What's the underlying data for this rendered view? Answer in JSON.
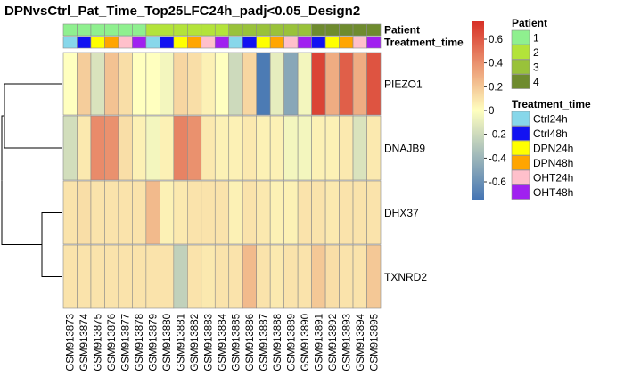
{
  "chart_data": {
    "type": "heatmap",
    "title": "DPNvsCtrl_Pat_Time_Top25LFC24h_padj<0.05_Design2",
    "rows": [
      "PIEZO1",
      "DNAJB9",
      "DHX37",
      "TXNRD2"
    ],
    "columns": [
      "GSM913873",
      "GSM913874",
      "GSM913875",
      "GSM913876",
      "GSM913877",
      "GSM913878",
      "GSM913879",
      "GSM913880",
      "GSM913881",
      "GSM913882",
      "GSM913883",
      "GSM913884",
      "GSM913885",
      "GSM913886",
      "GSM913887",
      "GSM913888",
      "GSM913889",
      "GSM913890",
      "GSM913891",
      "GSM913892",
      "GSM913893",
      "GSM913894",
      "GSM913895"
    ],
    "values": [
      [
        0.0,
        0.18,
        -0.15,
        0.22,
        0.12,
        0.0,
        0.0,
        -0.05,
        0.15,
        0.12,
        0.05,
        0.0,
        -0.2,
        0.15,
        -0.72,
        -0.1,
        -0.48,
        -0.05,
        0.68,
        0.3,
        0.58,
        0.3,
        0.62
      ],
      [
        -0.18,
        0.08,
        0.42,
        0.4,
        0.12,
        0.05,
        -0.05,
        0.05,
        0.45,
        0.4,
        0.08,
        0.05,
        0.05,
        0.08,
        0.05,
        0.05,
        -0.05,
        -0.05,
        0.05,
        0.05,
        0.08,
        -0.15,
        0.08
      ],
      [
        0.1,
        0.12,
        0.1,
        0.1,
        0.1,
        0.1,
        0.25,
        0.05,
        0.08,
        0.1,
        0.1,
        0.1,
        0.05,
        0.1,
        0.08,
        0.05,
        0.05,
        0.1,
        0.1,
        0.08,
        0.1,
        0.1,
        0.1
      ],
      [
        0.1,
        0.1,
        0.1,
        0.1,
        0.1,
        0.1,
        0.1,
        0.1,
        -0.25,
        0.1,
        0.08,
        0.1,
        0.1,
        0.25,
        0.1,
        0.08,
        0.1,
        0.1,
        0.2,
        0.12,
        0.1,
        0.1,
        0.2
      ]
    ],
    "color_scale": {
      "min": -0.75,
      "max": 0.75,
      "low": "#4575b4",
      "mid": "#ffffbf",
      "high": "#d73027"
    },
    "legend_ticks": [
      0.6,
      0.4,
      0.2,
      0,
      -0.2,
      -0.4,
      -0.6
    ],
    "legend_tick_labels": [
      "0.6",
      "0.4",
      "0.2",
      "0",
      "-0.2",
      "-0.4",
      "-0.6"
    ],
    "annotations": [
      {
        "label": "Patient",
        "levels": [
          "1",
          "1",
          "1",
          "1",
          "1",
          "1",
          "2",
          "2",
          "2",
          "2",
          "2",
          "2",
          "3",
          "3",
          "3",
          "3",
          "3",
          "3",
          "4",
          "4",
          "4",
          "4",
          "4"
        ]
      },
      {
        "label": "Treatment_time",
        "levels": [
          "Ctrl24h",
          "Ctrl48h",
          "DPN24h",
          "DPN48h",
          "OHT24h",
          "OHT48h",
          "Ctrl24h",
          "Ctrl48h",
          "DPN24h",
          "DPN48h",
          "OHT24h",
          "OHT48h",
          "Ctrl24h",
          "Ctrl48h",
          "DPN24h",
          "DPN48h",
          "OHT24h",
          "OHT48h",
          "Ctrl48h",
          "DPN24h",
          "DPN48h",
          "OHT24h",
          "OHT48h"
        ]
      }
    ],
    "annotation_legends": [
      {
        "title": "Patient",
        "items": [
          {
            "label": "1",
            "color": "#8ff08f"
          },
          {
            "label": "2",
            "color": "#b3e33a"
          },
          {
            "label": "3",
            "color": "#99c23a"
          },
          {
            "label": "4",
            "color": "#6e8b2e"
          }
        ]
      },
      {
        "title": "Treatment_time",
        "items": [
          {
            "label": "Ctrl24h",
            "color": "#87d7ea"
          },
          {
            "label": "Ctrl48h",
            "color": "#1212f2"
          },
          {
            "label": "DPN24h",
            "color": "#ffff00"
          },
          {
            "label": "DPN48h",
            "color": "#ffa500"
          },
          {
            "label": "OHT24h",
            "color": "#ffc0cb"
          },
          {
            "label": "OHT48h",
            "color": "#a020f0"
          }
        ]
      }
    ],
    "row_dendrogram": true
  }
}
